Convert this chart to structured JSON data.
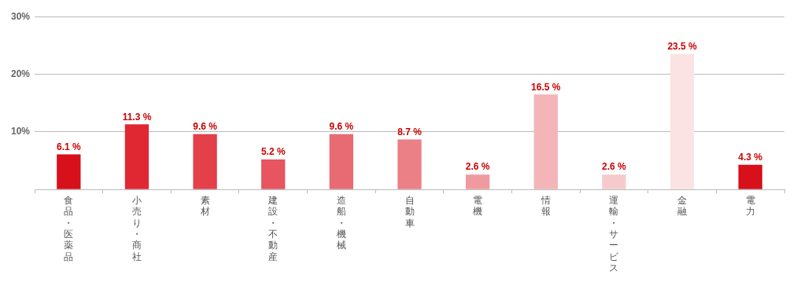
{
  "chart_data": {
    "type": "bar",
    "categories": [
      "食品・医薬品",
      "小売り・商社",
      "素材",
      "建設・不動産",
      "造船・機械",
      "自動車",
      "電機",
      "情報",
      "運輸・サービス",
      "金融",
      "電力"
    ],
    "values": [
      6.1,
      11.3,
      9.6,
      5.2,
      9.6,
      8.7,
      2.6,
      16.5,
      2.6,
      23.5,
      4.3
    ],
    "value_labels": [
      "6.1 %",
      "11.3 %",
      "9.6 %",
      "5.2 %",
      "9.6 %",
      "8.7 %",
      "2.6 %",
      "16.5 %",
      "2.6 %",
      "23.5 %",
      "4.3 %"
    ],
    "colors": [
      "#d7101b",
      "#e02833",
      "#e3404a",
      "#e65560",
      "#e86b73",
      "#ec8087",
      "#f09a9f",
      "#f3b5b8",
      "#f6cacd",
      "#fbe3e4",
      "#d7101b"
    ],
    "ylim": [
      0,
      30
    ],
    "yticks": [
      {
        "value": 0,
        "label": null
      },
      {
        "value": 10,
        "label": "10%"
      },
      {
        "value": 20,
        "label": "20%"
      },
      {
        "value": 30,
        "label": "30%"
      }
    ],
    "grid": "y",
    "legend": false
  }
}
